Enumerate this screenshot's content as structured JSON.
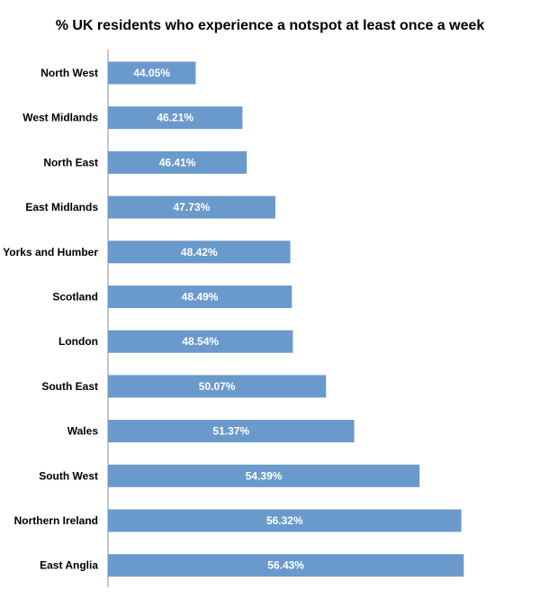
{
  "chart_data": {
    "type": "bar",
    "orientation": "horizontal",
    "title": "% UK residents who experience a notspot at least once a week",
    "categories": [
      "North West",
      "West Midlands",
      "North East",
      "East Midlands",
      "Yorks and Humber",
      "Scotland",
      "London",
      "South East",
      "Wales",
      "South West",
      "Northern Ireland",
      "East Anglia"
    ],
    "values": [
      44.05,
      46.21,
      46.41,
      47.73,
      48.42,
      48.49,
      48.54,
      50.07,
      51.37,
      54.39,
      56.32,
      56.43
    ],
    "data_labels": [
      "44.05%",
      "46.21%",
      "46.41%",
      "47.73%",
      "48.42%",
      "48.49%",
      "48.54%",
      "50.07%",
      "51.37%",
      "54.39%",
      "56.32%",
      "56.43%"
    ],
    "xlim": [
      40,
      57
    ],
    "xlabel": "",
    "ylabel": "",
    "grid": false,
    "bar_color": "#6a9acb"
  }
}
